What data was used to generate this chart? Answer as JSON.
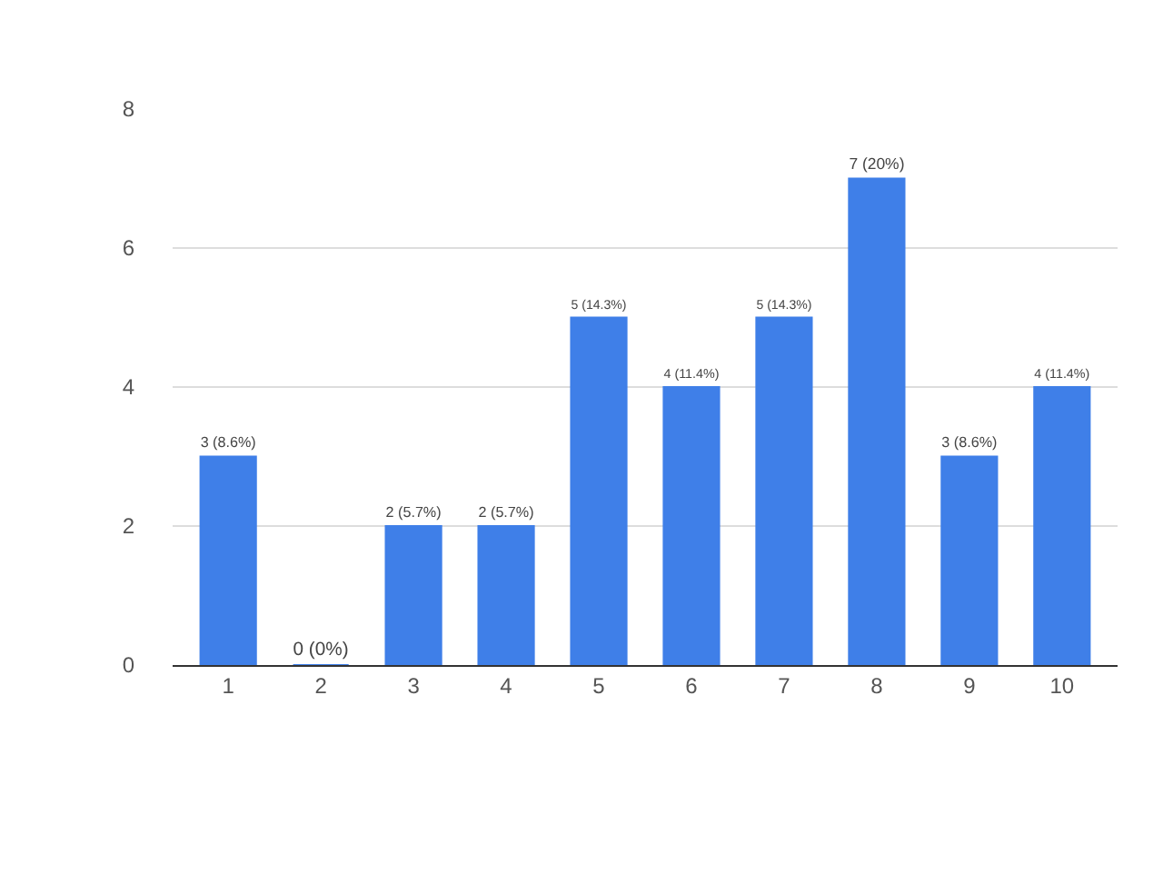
{
  "chart_data": {
    "type": "bar",
    "categories": [
      "1",
      "2",
      "3",
      "4",
      "5",
      "6",
      "7",
      "8",
      "9",
      "10"
    ],
    "values": [
      3,
      0,
      2,
      2,
      5,
      4,
      5,
      7,
      3,
      4
    ],
    "value_labels": [
      "3 (8.6%)",
      "0 (0%)",
      "2 (5.7%)",
      "2 (5.7%)",
      "5 (14.3%)",
      "4 (11.4%)",
      "5 (14.3%)",
      "7 (20%)",
      "3 (8.6%)",
      "4 (11.4%)"
    ],
    "color": "#3f7fe8",
    "ylim": [
      0,
      8
    ],
    "yticks": [
      0,
      2,
      4,
      6,
      8
    ],
    "grid": "y"
  }
}
